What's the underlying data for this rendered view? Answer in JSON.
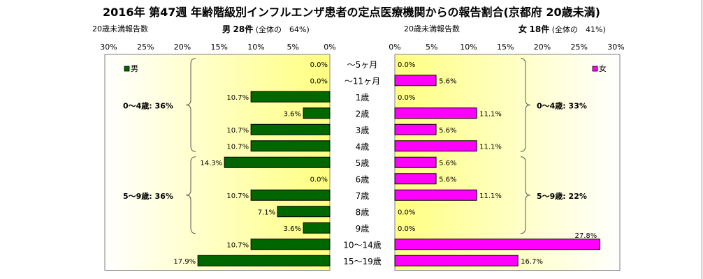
{
  "title": "2016年 第47週 年齢階級別インフルエンザ患者の定点医療機関からの報告割合(京都府 20歳未満)",
  "left_header": {
    "caption": "20歳未満報告数",
    "sex": "男",
    "count": "28件",
    "share": "(全体の　64%)"
  },
  "right_header": {
    "caption": "20歳未満報告数",
    "sex": "女",
    "count": "18件",
    "share": "(全体の　41%)"
  },
  "chart_data": {
    "type": "bar",
    "orientation": "horizontal",
    "layout": "population-pyramid",
    "title": "2016年 第47週 年齢階級別インフルエンザ患者の定点医療機関からの報告割合(京都府 20歳未満)",
    "categories": [
      "～5ヶ月",
      "～11ヶ月",
      "1歳",
      "2歳",
      "3歳",
      "4歳",
      "5歳",
      "6歳",
      "7歳",
      "8歳",
      "9歳",
      "10～14歳",
      "15～19歳"
    ],
    "axis_ticks": [
      "30%",
      "25%",
      "20%",
      "15%",
      "10%",
      "5%",
      "0%"
    ],
    "axis_ticks_right": [
      "0%",
      "5%",
      "10%",
      "15%",
      "20%",
      "25%",
      "30%"
    ],
    "xlim": [
      0,
      30
    ],
    "series": [
      {
        "name": "男",
        "color": "#006600",
        "values": [
          0.0,
          0.0,
          10.7,
          3.6,
          10.7,
          10.7,
          14.3,
          0.0,
          10.7,
          7.1,
          3.6,
          10.7,
          17.9
        ],
        "labels": [
          "0.0%",
          "0.0%",
          "10.7%",
          "3.6%",
          "10.7%",
          "10.7%",
          "14.3%",
          "0.0%",
          "10.7%",
          "7.1%",
          "3.6%",
          "10.7%",
          "17.9%"
        ]
      },
      {
        "name": "女",
        "color": "#ff00ff",
        "values": [
          0.0,
          5.6,
          0.0,
          11.1,
          5.6,
          11.1,
          5.6,
          5.6,
          11.1,
          0.0,
          0.0,
          27.8,
          16.7
        ],
        "labels": [
          "0.0%",
          "5.6%",
          "0.0%",
          "11.1%",
          "5.6%",
          "11.1%",
          "5.6%",
          "5.6%",
          "11.1%",
          "0.0%",
          "0.0%",
          "27.8%",
          "16.7%"
        ]
      }
    ],
    "annotations_left": [
      "0～4歳: 36%",
      "5～9歳: 36%"
    ],
    "annotations_right": [
      "0～4歳: 33%",
      "5～9歳: 22%"
    ],
    "grid": false,
    "legend": "top-inside",
    "background": "yellow-gradient"
  }
}
